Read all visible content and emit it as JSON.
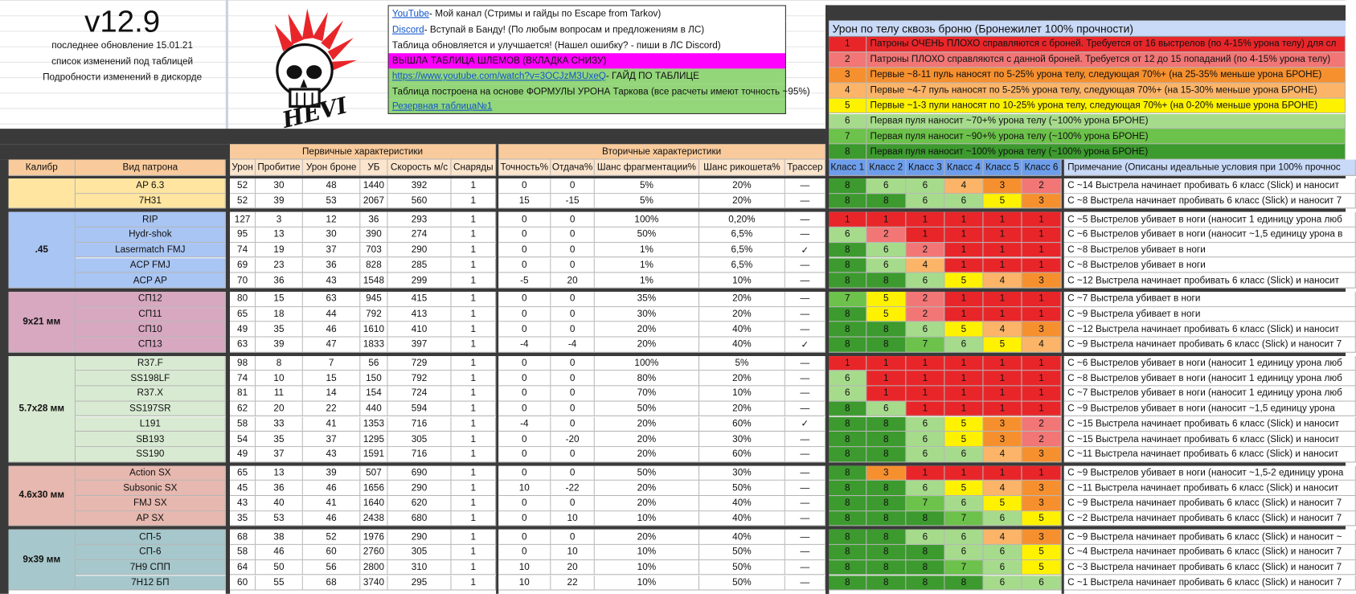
{
  "header": {
    "version": "v12.9",
    "lines": [
      "последнее обновление 15.01.21",
      "список изменений под таблицей",
      "Подробности изменений  в дискорде"
    ],
    "logo_text": "HEVI"
  },
  "info": [
    {
      "link": "YouTube",
      "text": " - Мой канал (Стримы и гайды по Escape from Tarkov)",
      "color": "#ffffff"
    },
    {
      "link": "Discord",
      "text": " - Вступай в Банду! (По любым вопросам и предложениям в ЛС)",
      "color": "#ffffff"
    },
    {
      "text": "Таблица обновляется и улучшается! (Нашел ошибку? - пиши в ЛС Discord)",
      "color": "#ffffff"
    },
    {
      "text": "ВЫШЛА ТАБЛИЦА ШЛЕМОВ (ВКЛАДКА СНИЗУ)",
      "color": "#ff00ff"
    },
    {
      "link": "https://www.youtube.com/watch?v=3OCJzM3UxeQ",
      "text": "  - ГАЙД ПО ТАБЛИЦЕ",
      "color": "#93d67a"
    },
    {
      "text": "Таблица построена на основе ФОРМУЛЫ УРОНА Таркова (все расчеты имеют точность ~95%)",
      "color": "#93d67a"
    },
    {
      "link": "Резервная таблица№1",
      "color": "#93d67a"
    }
  ],
  "legend": {
    "title": "Урон по телу сквозь броню (Бронежилет 100% прочности)",
    "rows": [
      {
        "class": 1,
        "text": "Патроны ОЧЕНЬ ПЛОХО справляются с броней. Требуется от 16 выстрелов (по 4-15% урона телу) для сл"
      },
      {
        "class": 2,
        "text": "Патроны ПЛОХО справляются с данной броней. Требуется от 12 до 15 попаданий (по 4-15% урона телу)"
      },
      {
        "class": 3,
        "text": "Первые ~8-11 пуль наносят по 5-25% урона телу, следующая 70%+  (на 25-35% меньше урона БРОНЕ)"
      },
      {
        "class": 4,
        "text": "Первые ~4-7 пуль наносят по 5-25% урона телу, следующая 70%+  (на 15-30% меньше урона БРОНЕ)"
      },
      {
        "class": 5,
        "text": "Первые ~1-3 пули наносят по 10-25% урона телу, следующая 70%+  (на 0-20% меньше урона БРОНЕ)"
      },
      {
        "class": 6,
        "text": "Первая пуля наносит ~70+% урона телу (~100% урона БРОНЕ)"
      },
      {
        "class": 7,
        "text": "Первая пуля наносит ~90+% урона телу (~100% урона БРОНЕ)"
      },
      {
        "class": 8,
        "text": "Первая пуля наносит ~100% урона телу (~100% урона БРОНЕ)"
      }
    ]
  },
  "class_colors": {
    "1": "#e8262a",
    "2": "#f27676",
    "3": "#f6902f",
    "4": "#fbb468",
    "5": "#fef200",
    "6": "#a6db8c",
    "7": "#6cc24a",
    "8": "#3c9a2e"
  },
  "table": {
    "group_headers": [
      "Первичные характеристики",
      "Вторичные характеристики"
    ],
    "columns": [
      "Калибр",
      "Вид патрона",
      "Урон",
      "Пробитие",
      "Урон броне",
      "УБ",
      "Скорость м/с",
      "Снаряды",
      "Точность%",
      "Отдача%",
      "Шанс фрагментации%",
      "Шанс рикошета%",
      "Трассер",
      "Класс 1",
      "Класс 2",
      "Класс 3",
      "Класс 4",
      "Класс 5",
      "Класс 6",
      "Примечание (Описаны идеальные условия при 100% прочнос"
    ],
    "groups": [
      {
        "caliber": null,
        "color": "#ffe5a0",
        "rows": [
          {
            "name": "AP 6.3",
            "stats": [
              "52",
              "30",
              "48",
              "1440",
              "392",
              "1",
              "0",
              "0",
              "5%",
              "20%",
              "—"
            ],
            "classes": [
              8,
              6,
              6,
              4,
              3,
              2
            ],
            "note": "С ~14 Выстрела начинает пробивать 6 класс (Slick) и наносит"
          },
          {
            "name": "7Н31",
            "stats": [
              "52",
              "39",
              "53",
              "2067",
              "560",
              "1",
              "15",
              "-15",
              "5%",
              "20%",
              "—"
            ],
            "classes": [
              8,
              8,
              6,
              6,
              5,
              3
            ],
            "note": "С ~8 Выстрела начинает пробивать 6 класс (Slick) и наносит 7"
          }
        ]
      },
      {
        "caliber": ".45",
        "color": "#a9c5f3",
        "rows": [
          {
            "name": "RIP",
            "stats": [
              "127",
              "3",
              "12",
              "36",
              "293",
              "1",
              "0",
              "0",
              "100%",
              "0,20%",
              "—"
            ],
            "classes": [
              1,
              1,
              1,
              1,
              1,
              1
            ],
            "note": "С ~5 Выстрелов убивает в ноги (наносит 1 единицу урона люб"
          },
          {
            "name": "Hydr-shok",
            "stats": [
              "95",
              "13",
              "30",
              "390",
              "274",
              "1",
              "0",
              "0",
              "50%",
              "6,5%",
              "—"
            ],
            "classes": [
              6,
              2,
              1,
              1,
              1,
              1
            ],
            "note": "С ~6 Выстрелов убивает в ноги (наносит ~1,5 единицу урона в"
          },
          {
            "name": "Lasermatch FMJ",
            "stats": [
              "74",
              "19",
              "37",
              "703",
              "290",
              "1",
              "0",
              "0",
              "1%",
              "6,5%",
              "✓"
            ],
            "classes": [
              8,
              6,
              2,
              1,
              1,
              1
            ],
            "note": "С ~8 Выстрелов убивает в ноги"
          },
          {
            "name": "ACP FMJ",
            "stats": [
              "69",
              "23",
              "36",
              "828",
              "285",
              "1",
              "0",
              "0",
              "1%",
              "6,5%",
              "—"
            ],
            "classes": [
              8,
              6,
              4,
              1,
              1,
              1
            ],
            "note": "С ~8 Выстрелов убивает в ноги"
          },
          {
            "name": "ACP AP",
            "stats": [
              "70",
              "36",
              "43",
              "1548",
              "299",
              "1",
              "-5",
              "20",
              "1%",
              "10%",
              "—"
            ],
            "classes": [
              8,
              8,
              6,
              5,
              4,
              3
            ],
            "note": "С ~12 Выстрела начинает пробивать 6 класс (Slick) и наносит"
          }
        ]
      },
      {
        "caliber": "9x21 мм",
        "color": "#d7a8c0",
        "rows": [
          {
            "name": "СП12",
            "stats": [
              "80",
              "15",
              "63",
              "945",
              "415",
              "1",
              "0",
              "0",
              "35%",
              "20%",
              "—"
            ],
            "classes": [
              7,
              5,
              2,
              1,
              1,
              1
            ],
            "note": "С ~7 Выстрела убивает в ноги"
          },
          {
            "name": "СП11",
            "stats": [
              "65",
              "18",
              "44",
              "792",
              "413",
              "1",
              "0",
              "0",
              "30%",
              "20%",
              "—"
            ],
            "classes": [
              8,
              5,
              2,
              1,
              1,
              1
            ],
            "note": "С ~9 Выстрела убивает в ноги"
          },
          {
            "name": "СП10",
            "stats": [
              "49",
              "35",
              "46",
              "1610",
              "410",
              "1",
              "0",
              "0",
              "20%",
              "40%",
              "—"
            ],
            "classes": [
              8,
              8,
              6,
              5,
              4,
              3
            ],
            "note": "С ~12 Выстрела начинает пробивать 6 класс (Slick) и наносит"
          },
          {
            "name": "СП13",
            "stats": [
              "63",
              "39",
              "47",
              "1833",
              "397",
              "1",
              "-4",
              "-4",
              "20%",
              "40%",
              "✓"
            ],
            "classes": [
              8,
              8,
              7,
              6,
              5,
              4
            ],
            "note": "С ~9 Выстрела начинает пробивать 6 класс (Slick) и наносит 7"
          }
        ]
      },
      {
        "caliber": "5.7x28 мм",
        "color": "#d9ead3",
        "rows": [
          {
            "name": "R37.F",
            "stats": [
              "98",
              "8",
              "7",
              "56",
              "729",
              "1",
              "0",
              "0",
              "100%",
              "5%",
              "—"
            ],
            "classes": [
              1,
              1,
              1,
              1,
              1,
              1
            ],
            "note": "С ~6 Выстрелов убивает в ноги (наносит 1 единицу урона люб"
          },
          {
            "name": "SS198LF",
            "stats": [
              "74",
              "10",
              "15",
              "150",
              "792",
              "1",
              "0",
              "0",
              "80%",
              "20%",
              "—"
            ],
            "classes": [
              6,
              1,
              1,
              1,
              1,
              1
            ],
            "note": "С ~8 Выстрелов убивает в ноги (наносит 1 единицу урона люб"
          },
          {
            "name": "R37.X",
            "stats": [
              "81",
              "11",
              "14",
              "154",
              "724",
              "1",
              "0",
              "0",
              "70%",
              "10%",
              "—"
            ],
            "classes": [
              6,
              1,
              1,
              1,
              1,
              1
            ],
            "note": "С ~7 Выстрелов убивает в ноги (наносит 1 единицу урона люб"
          },
          {
            "name": "SS197SR",
            "stats": [
              "62",
              "20",
              "22",
              "440",
              "594",
              "1",
              "0",
              "0",
              "50%",
              "20%",
              "—"
            ],
            "classes": [
              8,
              6,
              1,
              1,
              1,
              1
            ],
            "note": "С ~9 Выстрелов убивает в ноги  (наносит ~1,5 единицу урона"
          },
          {
            "name": "L191",
            "stats": [
              "58",
              "33",
              "41",
              "1353",
              "716",
              "1",
              "-4",
              "0",
              "20%",
              "60%",
              "✓"
            ],
            "classes": [
              8,
              8,
              6,
              5,
              3,
              2
            ],
            "note": "С ~15 Выстрела начинает пробивать 6 класс (Slick) и наносит"
          },
          {
            "name": "SB193",
            "stats": [
              "54",
              "35",
              "37",
              "1295",
              "305",
              "1",
              "0",
              "-20",
              "20%",
              "30%",
              "—"
            ],
            "classes": [
              8,
              8,
              6,
              5,
              3,
              2
            ],
            "note": "С ~15 Выстрела начинает пробивать 6 класс (Slick) и наносит"
          },
          {
            "name": "SS190",
            "stats": [
              "49",
              "37",
              "43",
              "1591",
              "716",
              "1",
              "0",
              "0",
              "20%",
              "60%",
              "—"
            ],
            "classes": [
              8,
              8,
              6,
              6,
              4,
              3
            ],
            "note": "С ~11 Выстрела начинает пробивать 6 класс (Slick) и наносит"
          }
        ]
      },
      {
        "caliber": "4.6x30 мм",
        "color": "#e6b8af",
        "rows": [
          {
            "name": "Action SX",
            "stats": [
              "65",
              "13",
              "39",
              "507",
              "690",
              "1",
              "0",
              "0",
              "50%",
              "30%",
              "—"
            ],
            "classes": [
              8,
              3,
              1,
              1,
              1,
              1
            ],
            "note": "С ~9 Выстрелов убивает в ноги (наносит ~1,5-2 единицу урона"
          },
          {
            "name": "Subsonic SX",
            "stats": [
              "45",
              "36",
              "46",
              "1656",
              "290",
              "1",
              "10",
              "-22",
              "20%",
              "50%",
              "—"
            ],
            "classes": [
              8,
              8,
              6,
              5,
              4,
              3
            ],
            "note": "С ~11 Выстрела начинает пробивать 6 класс (Slick) и наносит"
          },
          {
            "name": "FMJ SX",
            "stats": [
              "43",
              "40",
              "41",
              "1640",
              "620",
              "1",
              "0",
              "0",
              "20%",
              "40%",
              "—"
            ],
            "classes": [
              8,
              8,
              7,
              6,
              5,
              3
            ],
            "note": "С ~9 Выстрела начинает пробивать 6 класс (Slick) и наносит 7"
          },
          {
            "name": "AP SX",
            "stats": [
              "35",
              "53",
              "46",
              "2438",
              "680",
              "1",
              "0",
              "10",
              "10%",
              "40%",
              "—"
            ],
            "classes": [
              8,
              8,
              8,
              7,
              6,
              5
            ],
            "note": "С ~2 Выстрела начинает пробивать 6 класс (Slick) и наносит 7"
          }
        ]
      },
      {
        "caliber": "9x39 мм",
        "color": "#a6c7cb",
        "rows": [
          {
            "name": "СП-5",
            "stats": [
              "68",
              "38",
              "52",
              "1976",
              "290",
              "1",
              "0",
              "0",
              "20%",
              "40%",
              "—"
            ],
            "classes": [
              8,
              8,
              6,
              6,
              4,
              3
            ],
            "note": "С ~9 Выстрела начинает пробивать 6 класс (Slick) и наносит ~"
          },
          {
            "name": "СП-6",
            "stats": [
              "58",
              "46",
              "60",
              "2760",
              "305",
              "1",
              "0",
              "10",
              "10%",
              "50%",
              "—"
            ],
            "classes": [
              8,
              8,
              8,
              6,
              6,
              5
            ],
            "note": "С ~4 Выстрела начинает пробивать 6 класс (Slick) и наносит 7"
          },
          {
            "name": "7Н9 СПП",
            "stats": [
              "64",
              "50",
              "56",
              "2800",
              "310",
              "1",
              "10",
              "20",
              "10%",
              "50%",
              "—"
            ],
            "classes": [
              8,
              8,
              8,
              7,
              6,
              5
            ],
            "note": "С ~3 Выстрела начинает пробивать 6 класс (Slick) и наносит 7"
          },
          {
            "name": "7Н12 БП",
            "stats": [
              "60",
              "55",
              "68",
              "3740",
              "295",
              "1",
              "10",
              "22",
              "10%",
              "50%",
              "—"
            ],
            "classes": [
              8,
              8,
              8,
              8,
              6,
              6
            ],
            "note": "С ~1 Выстрела начинает пробивать 6 класс (Slick) и наносит 7"
          }
        ]
      }
    ]
  }
}
